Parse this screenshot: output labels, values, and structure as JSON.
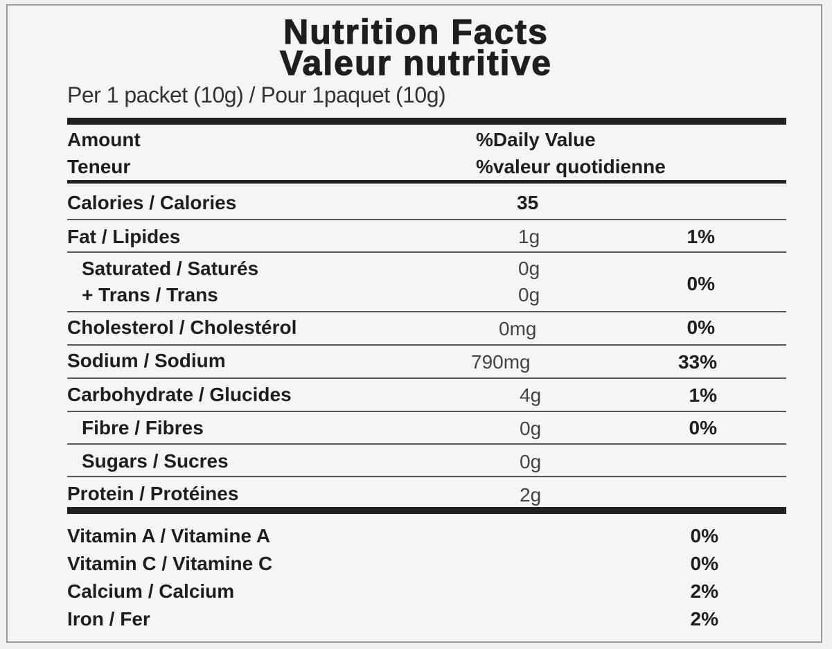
{
  "header": {
    "title_en": "Nutrition Facts",
    "title_fr": "Valeur nutritive",
    "serving": "Per 1 packet (10g) / Pour 1paquet (10g)"
  },
  "columns": {
    "amount_en": "Amount",
    "amount_fr": "Teneur",
    "dv_en": "%Daily Value",
    "dv_fr": "%valeur quotidienne"
  },
  "nutrients": [
    {
      "label": "Calories / Calories",
      "amount": "35",
      "dv": ""
    },
    {
      "label": "Fat / Lipides",
      "amount": "1g",
      "dv": "1%"
    },
    {
      "label": "Saturated / Saturés",
      "amount": "0g",
      "dv": ""
    },
    {
      "label": "+ Trans / Trans",
      "amount": "0g",
      "dv": "0%"
    },
    {
      "label": "Cholesterol / Cholestérol",
      "amount": "0mg",
      "dv": "0%"
    },
    {
      "label": "Sodium / Sodium",
      "amount": "790mg",
      "dv": "33%"
    },
    {
      "label": "Carbohydrate / Glucides",
      "amount": "4g",
      "dv": "1%"
    },
    {
      "label": "Fibre / Fibres",
      "amount": "0g",
      "dv": "0%"
    },
    {
      "label": "Sugars / Sucres",
      "amount": "0g",
      "dv": ""
    },
    {
      "label": "Protein / Protéines",
      "amount": "2g",
      "dv": ""
    }
  ],
  "vitamins": [
    {
      "label": "Vitamin A / Vitamine A",
      "dv": "0%"
    },
    {
      "label": "Vitamin C / Vitamine C",
      "dv": "0%"
    },
    {
      "label": "Calcium / Calcium",
      "dv": "2%"
    },
    {
      "label": "Iron / Fer",
      "dv": "2%"
    }
  ]
}
